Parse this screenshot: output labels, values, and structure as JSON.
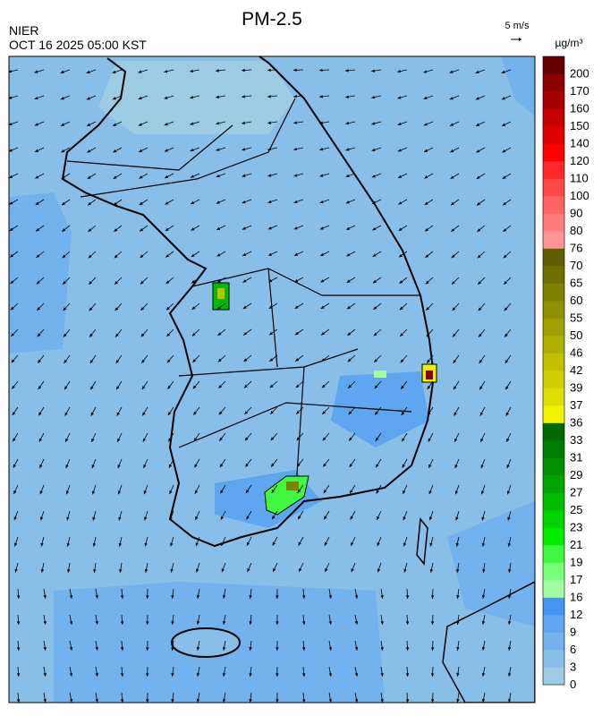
{
  "header": {
    "title": "PM-2.5",
    "agency": "NIER",
    "timestamp": "OCT 16 2025 05:00 KST",
    "wind_scale": "5 m/s"
  },
  "colorbar": {
    "unit": "µg/m³",
    "labels": [
      0,
      3,
      6,
      9,
      12,
      16,
      17,
      19,
      21,
      23,
      25,
      27,
      29,
      31,
      33,
      36,
      37,
      39,
      42,
      46,
      50,
      55,
      60,
      65,
      70,
      76,
      80,
      90,
      100,
      110,
      120,
      140,
      150,
      160,
      170,
      200
    ],
    "colors": [
      "#9ccbe3",
      "#88bfe9",
      "#74b2ed",
      "#5ea6f0",
      "#4496f0",
      "#a0ffa0",
      "#78ff78",
      "#40f840",
      "#00ec00",
      "#00d400",
      "#00bc00",
      "#00a600",
      "#009000",
      "#007e00",
      "#006a00",
      "#f0f000",
      "#e0e000",
      "#d0d000",
      "#c0c000",
      "#b0b000",
      "#a0a000",
      "#909000",
      "#808000",
      "#707000",
      "#606000",
      "#ff9494",
      "#ff7c7c",
      "#ff6464",
      "#ff4848",
      "#ff2828",
      "#ff0000",
      "#e00000",
      "#c40000",
      "#a80000",
      "#8c0000",
      "#640000"
    ]
  }
}
